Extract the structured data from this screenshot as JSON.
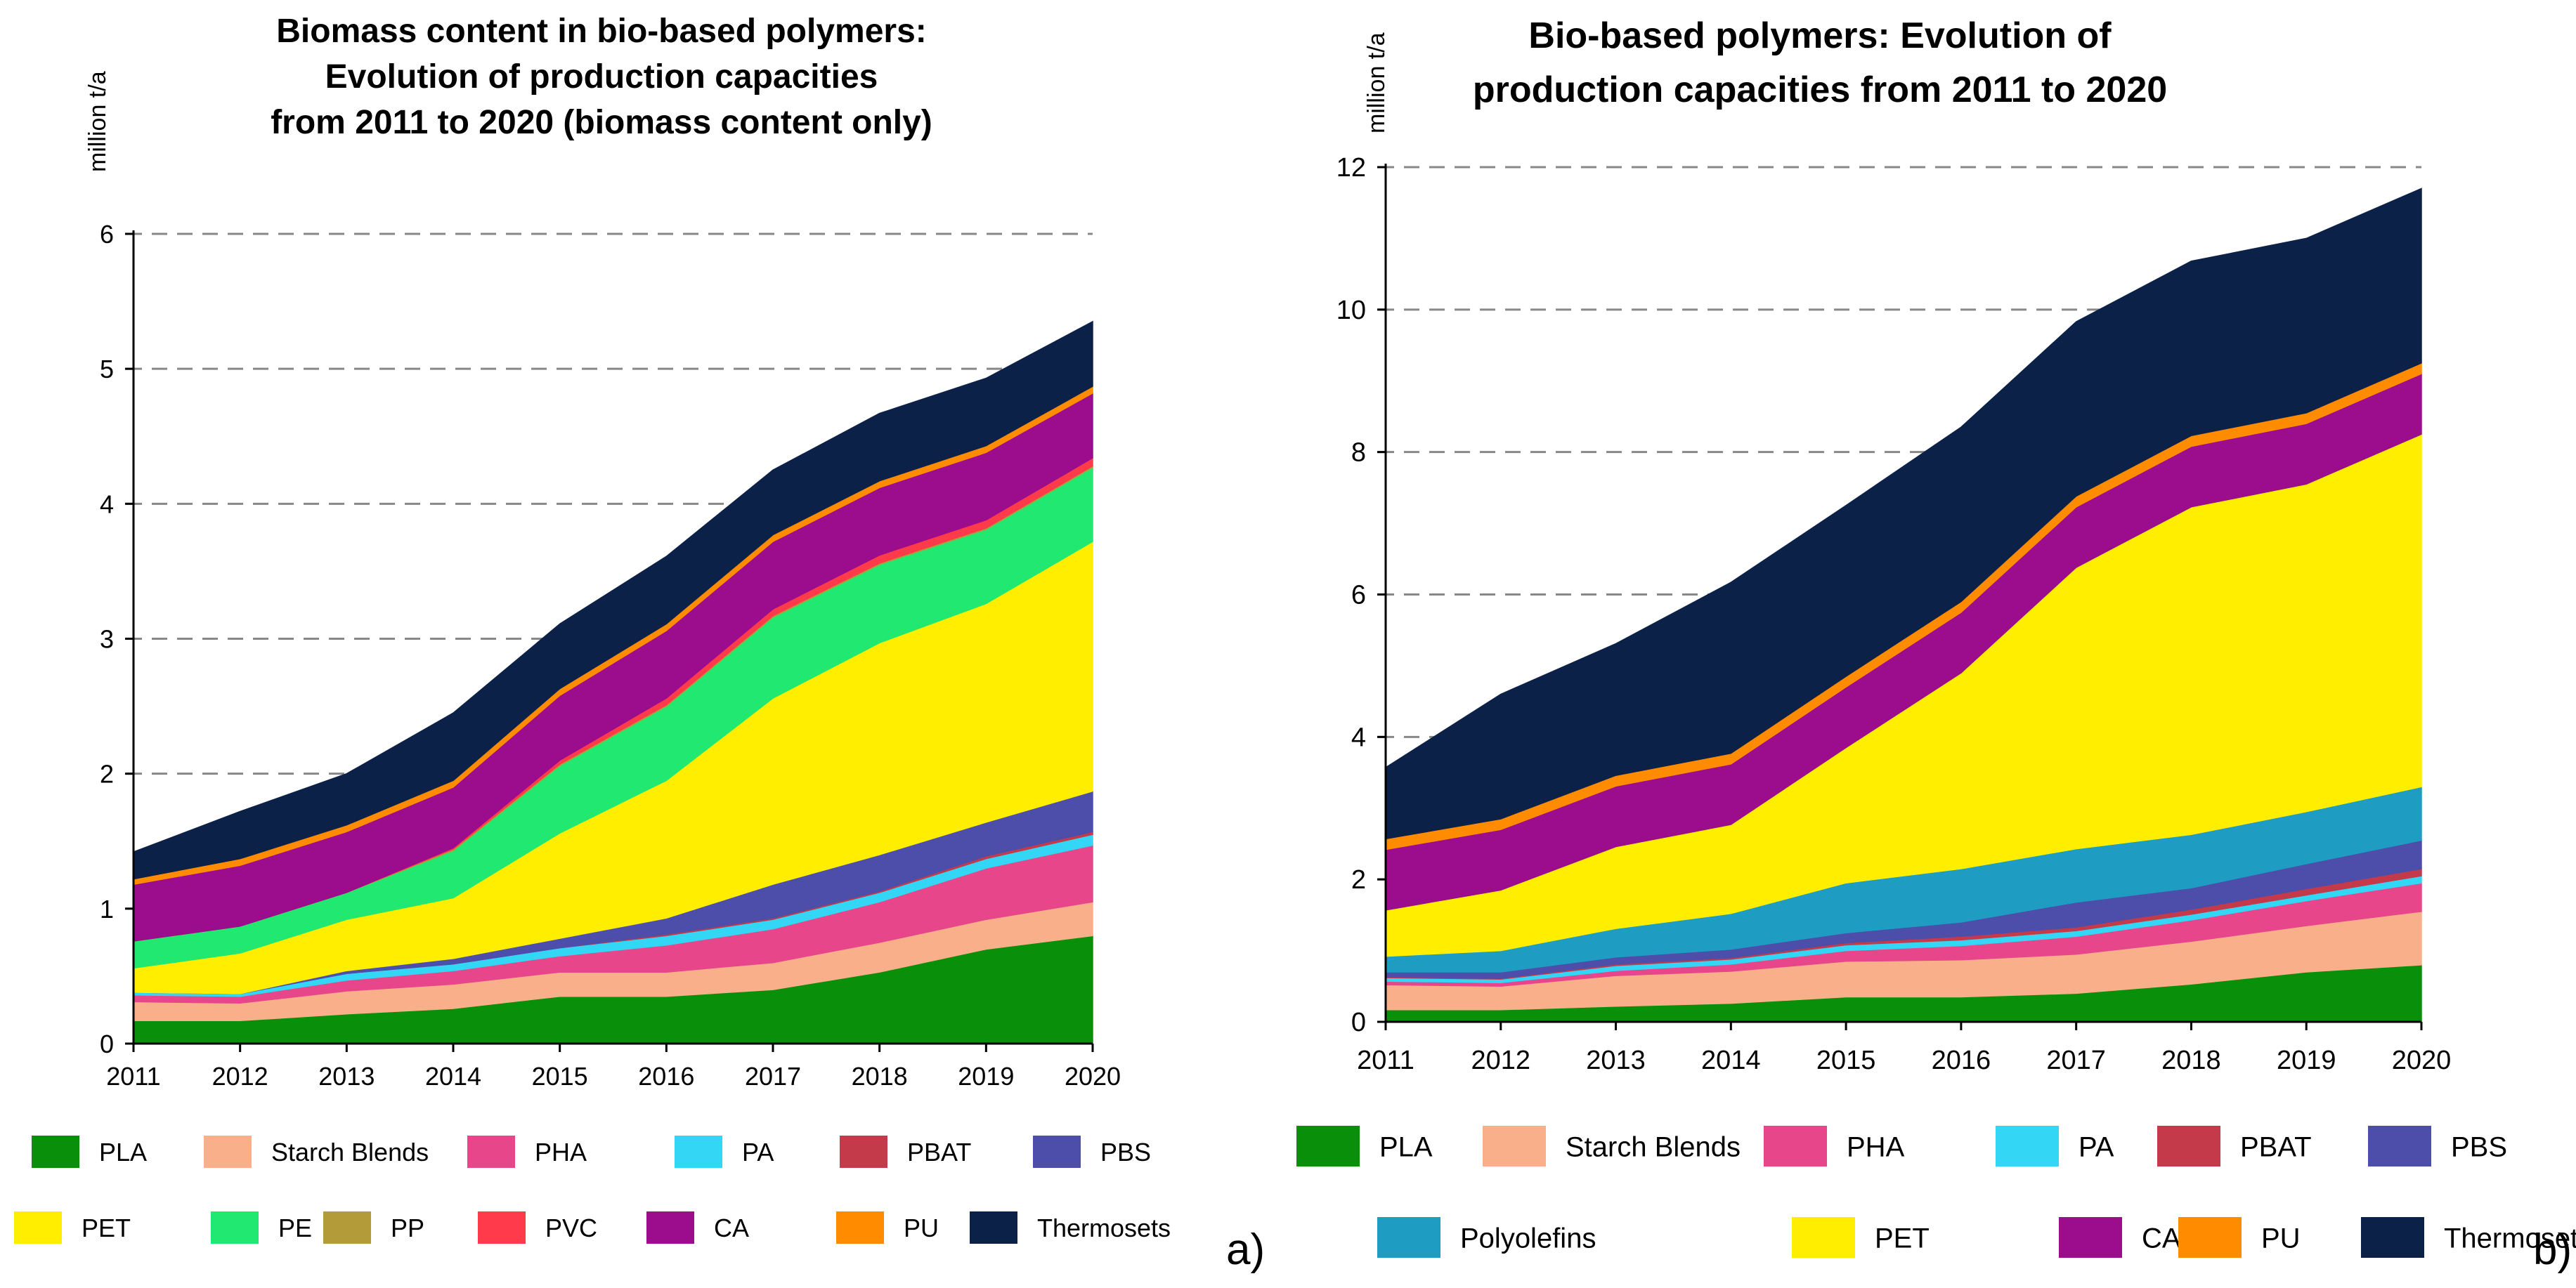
{
  "chart_data": [
    {
      "type": "area",
      "stacked": true,
      "title_lines": [
        "Biomass content in bio-based polymers:",
        "Evolution of production capacities",
        "from 2011 to 2020 (biomass content only)"
      ],
      "ylabel": "million t/a",
      "xlabel": "",
      "panel_tag": "a)",
      "categories": [
        "2011",
        "2012",
        "2013",
        "2014",
        "2015",
        "2016",
        "2017",
        "2018",
        "2019",
        "2020"
      ],
      "ylim": [
        0,
        6
      ],
      "yticks": [
        0,
        1,
        2,
        3,
        4,
        5,
        6
      ],
      "grid": "dashed horizontal",
      "legend_position": "bottom",
      "series": [
        {
          "name": "PLA",
          "color": "#0a8f0a",
          "values": [
            0.17,
            0.17,
            0.22,
            0.26,
            0.35,
            0.35,
            0.4,
            0.53,
            0.7,
            0.8
          ]
        },
        {
          "name": "Starch Blends",
          "color": "#f9b08a",
          "values": [
            0.14,
            0.13,
            0.17,
            0.18,
            0.18,
            0.18,
            0.2,
            0.22,
            0.22,
            0.25
          ]
        },
        {
          "name": "PHA",
          "color": "#e8468a",
          "values": [
            0.05,
            0.05,
            0.08,
            0.1,
            0.12,
            0.2,
            0.25,
            0.3,
            0.38,
            0.42
          ]
        },
        {
          "name": "PA",
          "color": "#33d6f5",
          "values": [
            0.02,
            0.02,
            0.05,
            0.05,
            0.06,
            0.07,
            0.07,
            0.07,
            0.07,
            0.08
          ]
        },
        {
          "name": "PBAT",
          "color": "#c43a4a",
          "values": [
            0.0,
            0.0,
            0.0,
            0.0,
            0.0,
            0.01,
            0.01,
            0.01,
            0.02,
            0.02
          ]
        },
        {
          "name": "PBS",
          "color": "#4d4daa",
          "values": [
            0.0,
            0.0,
            0.02,
            0.04,
            0.07,
            0.12,
            0.25,
            0.27,
            0.25,
            0.3
          ]
        },
        {
          "name": "PET",
          "color": "#ffee00",
          "values": [
            0.18,
            0.3,
            0.38,
            0.45,
            0.78,
            1.02,
            1.38,
            1.57,
            1.62,
            1.85
          ]
        },
        {
          "name": "PE",
          "color": "#20e870",
          "values": [
            0.2,
            0.2,
            0.2,
            0.35,
            0.5,
            0.55,
            0.6,
            0.58,
            0.55,
            0.55
          ]
        },
        {
          "name": "PP",
          "color": "#b39b3a",
          "values": [
            0.0,
            0.0,
            0.0,
            0.01,
            0.01,
            0.01,
            0.01,
            0.01,
            0.01,
            0.01
          ]
        },
        {
          "name": "PVC",
          "color": "#ff3a4a",
          "values": [
            0.0,
            0.0,
            0.0,
            0.01,
            0.03,
            0.05,
            0.05,
            0.06,
            0.06,
            0.06
          ]
        },
        {
          "name": "CA",
          "color": "#9b0d8c",
          "values": [
            0.42,
            0.45,
            0.45,
            0.45,
            0.48,
            0.5,
            0.5,
            0.5,
            0.5,
            0.48
          ]
        },
        {
          "name": "PU",
          "color": "#ff8c00",
          "values": [
            0.04,
            0.05,
            0.05,
            0.05,
            0.05,
            0.05,
            0.05,
            0.05,
            0.05,
            0.05
          ]
        },
        {
          "name": "Thermosets",
          "color": "#0c2148",
          "values": [
            0.2,
            0.35,
            0.38,
            0.5,
            0.48,
            0.5,
            0.48,
            0.5,
            0.5,
            0.48
          ]
        }
      ]
    },
    {
      "type": "area",
      "stacked": true,
      "title_lines": [
        "Bio-based polymers: Evolution of",
        "production capacities from 2011 to 2020"
      ],
      "ylabel": "million t/a",
      "xlabel": "",
      "panel_tag": "b)",
      "categories": [
        "2011",
        "2012",
        "2013",
        "2014",
        "2015",
        "2016",
        "2017",
        "2018",
        "2019",
        "2020"
      ],
      "ylim": [
        0,
        12
      ],
      "yticks": [
        0,
        2,
        4,
        6,
        8,
        10,
        12
      ],
      "grid": "dashed horizontal",
      "legend_position": "bottom",
      "series": [
        {
          "name": "PLA",
          "color": "#0a8f0a",
          "values": [
            0.17,
            0.17,
            0.22,
            0.26,
            0.35,
            0.35,
            0.4,
            0.53,
            0.7,
            0.8
          ]
        },
        {
          "name": "Starch Blends",
          "color": "#f9b08a",
          "values": [
            0.35,
            0.33,
            0.43,
            0.45,
            0.5,
            0.52,
            0.55,
            0.6,
            0.65,
            0.75
          ]
        },
        {
          "name": "PHA",
          "color": "#e8468a",
          "values": [
            0.05,
            0.05,
            0.07,
            0.1,
            0.15,
            0.2,
            0.25,
            0.3,
            0.35,
            0.4
          ]
        },
        {
          "name": "PA",
          "color": "#33d6f5",
          "values": [
            0.05,
            0.05,
            0.07,
            0.07,
            0.08,
            0.08,
            0.08,
            0.08,
            0.08,
            0.1
          ]
        },
        {
          "name": "PBAT",
          "color": "#c43a4a",
          "values": [
            0.01,
            0.01,
            0.02,
            0.02,
            0.03,
            0.05,
            0.05,
            0.07,
            0.09,
            0.1
          ]
        },
        {
          "name": "PBS",
          "color": "#4d4daa",
          "values": [
            0.07,
            0.09,
            0.1,
            0.12,
            0.14,
            0.2,
            0.35,
            0.3,
            0.35,
            0.4
          ]
        },
        {
          "name": "Polyolefins",
          "color": "#1f9cc2",
          "values": [
            0.22,
            0.3,
            0.4,
            0.5,
            0.7,
            0.75,
            0.75,
            0.75,
            0.73,
            0.75
          ]
        },
        {
          "name": "PET",
          "color": "#ffee00",
          "values": [
            0.65,
            0.85,
            1.15,
            1.25,
            1.9,
            2.75,
            3.95,
            4.6,
            4.6,
            4.95
          ]
        },
        {
          "name": "CA",
          "color": "#9b0d8c",
          "values": [
            0.85,
            0.85,
            0.85,
            0.85,
            0.85,
            0.85,
            0.85,
            0.85,
            0.85,
            0.85
          ]
        },
        {
          "name": "PU",
          "color": "#ff8c00",
          "values": [
            0.15,
            0.15,
            0.15,
            0.15,
            0.15,
            0.15,
            0.15,
            0.15,
            0.15,
            0.15
          ]
        },
        {
          "name": "Thermosets",
          "color": "#0c2148",
          "values": [
            1.0,
            1.75,
            1.85,
            2.4,
            2.4,
            2.45,
            2.45,
            2.45,
            2.45,
            2.45
          ]
        }
      ]
    }
  ]
}
